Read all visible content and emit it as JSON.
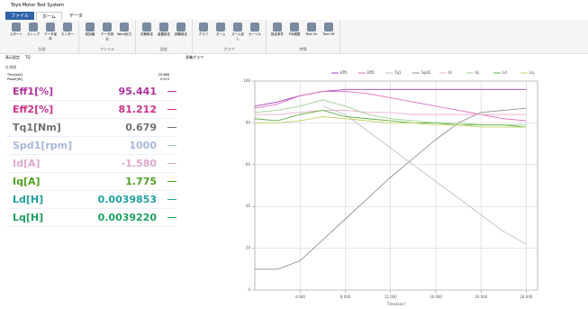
{
  "window": {
    "title": "Toyo Motor Test System"
  },
  "tabs": [
    "ファイル",
    "ホーム",
    "データ"
  ],
  "ribbon_groups": [
    {
      "name": "計測",
      "buttons": [
        "スタート",
        "ストップ",
        "データ保存",
        "モニター"
      ]
    },
    {
      "name": "ファイル",
      "buttons": [
        "前回値",
        "データ読込",
        "Word出力"
      ]
    },
    {
      "name": "設定",
      "buttons": [
        "初期設定",
        "装置設定",
        "試験設定"
      ]
    },
    {
      "name": "グラフ",
      "buttons": [
        "グラフ",
        "ズーム",
        "ズーム戻し",
        "カーソル"
      ]
    },
    {
      "name": "特殊",
      "buttons": [
        "指定条件",
        "PID調整",
        "Test On",
        "Test Off"
      ]
    }
  ],
  "panel_tabs": [
    "表示設定",
    "TQ"
  ],
  "panel_title": "計測値",
  "graph_tab": "多軸グラフ",
  "small_table": [
    [
      "Time[sec]",
      "29.668"
    ],
    [
      "Power[W]",
      "0.915"
    ]
  ],
  "readouts": [
    {
      "name": "Eff1[%]",
      "value": "95.441",
      "color": "#b0309a"
    },
    {
      "name": "Eff2[%]",
      "value": "81.212",
      "color": "#d0308a"
    },
    {
      "name": "Tq1[Nm]",
      "value": "0.679",
      "color": "#707070"
    },
    {
      "name": "Spd1[rpm]",
      "value": "1000",
      "color": "#a8b8d8"
    },
    {
      "name": "Id[A]",
      "value": "-1.580",
      "color": "#e0a8d0"
    },
    {
      "name": "Iq[A]",
      "value": "1.775",
      "color": "#50a020"
    },
    {
      "name": "Ld[H]",
      "value": "0.0039853",
      "color": "#20a0a0"
    },
    {
      "name": "Lq[H]",
      "value": "0.0039220",
      "color": "#20a060"
    }
  ],
  "chart_data": {
    "type": "line",
    "x_label": "Time[sec]",
    "x": [
      0,
      2,
      4,
      6,
      8,
      10,
      12,
      14,
      16,
      18,
      20,
      22,
      24
    ],
    "xlim": [
      0,
      25
    ],
    "xticks": [
      {
        "value": 4,
        "label": "4.000"
      },
      {
        "value": 8,
        "label": "8.000"
      },
      {
        "value": 12,
        "label": "12.000"
      },
      {
        "value": 16,
        "label": "16.000"
      },
      {
        "value": 20,
        "label": "20.000"
      },
      {
        "value": 24,
        "label": "24.000"
      }
    ],
    "ylim": [
      0,
      100
    ],
    "yticks": [
      0,
      20,
      40,
      60,
      80,
      100
    ],
    "grid": true,
    "series": [
      {
        "name": "Eff1",
        "color": "#a040c0",
        "values": [
          88,
          90,
          93,
          95,
          96,
          96,
          96,
          96,
          96,
          96,
          96,
          96,
          96
        ]
      },
      {
        "name": "Eff2",
        "color": "#e070c0",
        "values": [
          87,
          89,
          93,
          95,
          95,
          94,
          92,
          90,
          88,
          86,
          84,
          82,
          81
        ]
      },
      {
        "name": "Tq1",
        "color": "#c0c0c8",
        "values": [
          null,
          null,
          null,
          88,
          84,
          76,
          68,
          60,
          52,
          44,
          36,
          28,
          22
        ]
      },
      {
        "name": "Spd1",
        "color": "#909090",
        "values": [
          10,
          10,
          14,
          24,
          34,
          44,
          54,
          63,
          72,
          80,
          85,
          86,
          87
        ]
      },
      {
        "name": "Id",
        "color": "#f0b0d0",
        "values": [
          84,
          84,
          85,
          86,
          86,
          85,
          85,
          84,
          84,
          84,
          84,
          84,
          84
        ]
      },
      {
        "name": "Iq",
        "color": "#a0d090",
        "values": [
          85,
          86,
          88,
          91,
          88,
          84,
          82,
          81,
          80,
          80,
          79,
          79,
          79
        ]
      },
      {
        "name": "Ld",
        "color": "#60b040",
        "values": [
          82,
          81,
          84,
          86,
          83,
          82,
          81,
          80,
          80,
          79,
          79,
          79,
          78
        ]
      },
      {
        "name": "Lq",
        "color": "#c0d060",
        "values": [
          80,
          80,
          81,
          83,
          82,
          81,
          80,
          80,
          79,
          79,
          78,
          78,
          78
        ]
      }
    ]
  }
}
